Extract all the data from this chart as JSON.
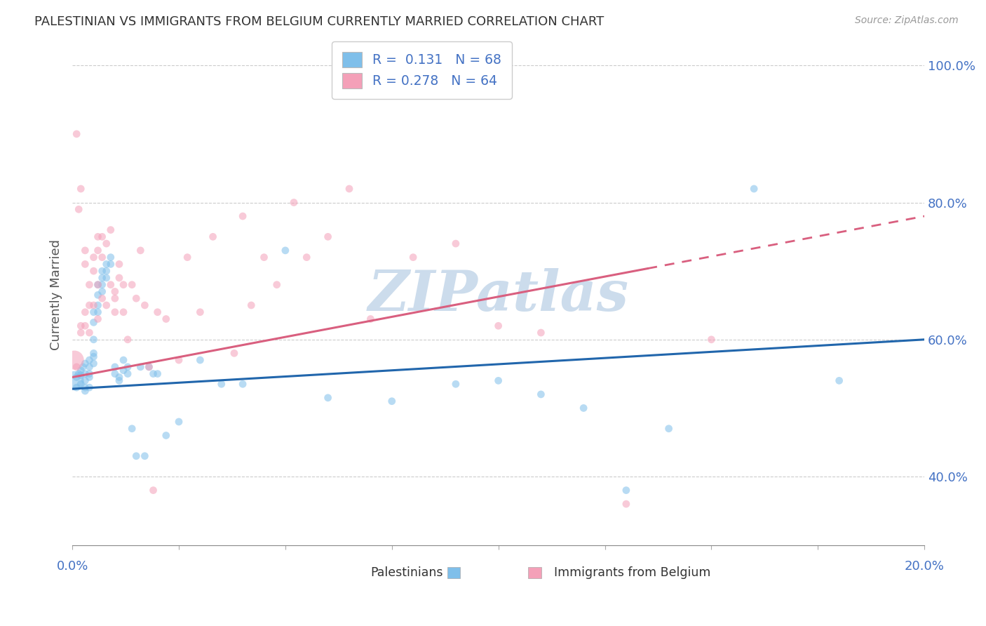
{
  "title": "PALESTINIAN VS IMMIGRANTS FROM BELGIUM CURRENTLY MARRIED CORRELATION CHART",
  "source": "Source: ZipAtlas.com",
  "ylabel": "Currently Married",
  "legend_label1": "Palestinians",
  "legend_label2": "Immigrants from Belgium",
  "R1": 0.131,
  "N1": 68,
  "R2": 0.278,
  "N2": 64,
  "color1": "#7fbfea",
  "color2": "#f4a0b8",
  "trendline1_color": "#2166ac",
  "trendline2_color": "#d95f7f",
  "watermark_color": "#ccdcec",
  "xlim": [
    0.0,
    0.2
  ],
  "ylim": [
    0.3,
    1.03
  ],
  "yticks": [
    0.4,
    0.6,
    0.8,
    1.0
  ],
  "ytick_labels": [
    "40.0%",
    "60.0%",
    "80.0%",
    "100.0%"
  ],
  "trendline1_x0": 0.0,
  "trendline1_y0": 0.528,
  "trendline1_x1": 0.2,
  "trendline1_y1": 0.6,
  "trendline2_x0": 0.0,
  "trendline2_y0": 0.545,
  "trendline2_x1": 0.2,
  "trendline2_y1": 0.78,
  "palestinians_x": [
    0.0005,
    0.001,
    0.001,
    0.0015,
    0.002,
    0.002,
    0.002,
    0.0025,
    0.003,
    0.003,
    0.003,
    0.003,
    0.003,
    0.004,
    0.004,
    0.004,
    0.004,
    0.004,
    0.005,
    0.005,
    0.005,
    0.005,
    0.005,
    0.005,
    0.006,
    0.006,
    0.006,
    0.006,
    0.007,
    0.007,
    0.007,
    0.007,
    0.008,
    0.008,
    0.008,
    0.009,
    0.009,
    0.01,
    0.01,
    0.011,
    0.011,
    0.012,
    0.012,
    0.013,
    0.013,
    0.014,
    0.015,
    0.016,
    0.017,
    0.018,
    0.019,
    0.02,
    0.022,
    0.025,
    0.03,
    0.035,
    0.04,
    0.05,
    0.06,
    0.075,
    0.09,
    0.1,
    0.11,
    0.12,
    0.13,
    0.14,
    0.16,
    0.18
  ],
  "palestinians_y": [
    0.54,
    0.53,
    0.545,
    0.55,
    0.535,
    0.555,
    0.548,
    0.56,
    0.53,
    0.565,
    0.55,
    0.54,
    0.525,
    0.57,
    0.56,
    0.55,
    0.545,
    0.53,
    0.575,
    0.64,
    0.625,
    0.6,
    0.58,
    0.565,
    0.68,
    0.665,
    0.65,
    0.64,
    0.7,
    0.69,
    0.68,
    0.67,
    0.71,
    0.7,
    0.69,
    0.72,
    0.71,
    0.56,
    0.55,
    0.545,
    0.54,
    0.57,
    0.555,
    0.56,
    0.55,
    0.47,
    0.43,
    0.56,
    0.43,
    0.56,
    0.55,
    0.55,
    0.46,
    0.48,
    0.57,
    0.535,
    0.535,
    0.73,
    0.515,
    0.51,
    0.535,
    0.54,
    0.52,
    0.5,
    0.38,
    0.47,
    0.82,
    0.54
  ],
  "belgium_x": [
    0.0005,
    0.001,
    0.001,
    0.0015,
    0.002,
    0.002,
    0.002,
    0.003,
    0.003,
    0.003,
    0.003,
    0.004,
    0.004,
    0.004,
    0.005,
    0.005,
    0.005,
    0.006,
    0.006,
    0.006,
    0.006,
    0.007,
    0.007,
    0.007,
    0.008,
    0.008,
    0.009,
    0.009,
    0.01,
    0.01,
    0.01,
    0.011,
    0.011,
    0.012,
    0.012,
    0.013,
    0.014,
    0.015,
    0.016,
    0.017,
    0.018,
    0.019,
    0.02,
    0.022,
    0.025,
    0.027,
    0.03,
    0.033,
    0.038,
    0.04,
    0.042,
    0.045,
    0.048,
    0.052,
    0.055,
    0.06,
    0.065,
    0.07,
    0.08,
    0.09,
    0.1,
    0.11,
    0.13,
    0.15
  ],
  "belgium_y": [
    0.57,
    0.56,
    0.9,
    0.79,
    0.82,
    0.62,
    0.61,
    0.73,
    0.71,
    0.64,
    0.62,
    0.68,
    0.65,
    0.61,
    0.72,
    0.7,
    0.65,
    0.75,
    0.73,
    0.68,
    0.63,
    0.75,
    0.72,
    0.66,
    0.74,
    0.65,
    0.76,
    0.68,
    0.67,
    0.66,
    0.64,
    0.71,
    0.69,
    0.68,
    0.64,
    0.6,
    0.68,
    0.66,
    0.73,
    0.65,
    0.56,
    0.38,
    0.64,
    0.63,
    0.57,
    0.72,
    0.64,
    0.75,
    0.58,
    0.78,
    0.65,
    0.72,
    0.68,
    0.8,
    0.72,
    0.75,
    0.82,
    0.63,
    0.72,
    0.74,
    0.62,
    0.61,
    0.36,
    0.6
  ],
  "dot_size": 60,
  "large_dot_size": 380,
  "alpha": 0.55
}
